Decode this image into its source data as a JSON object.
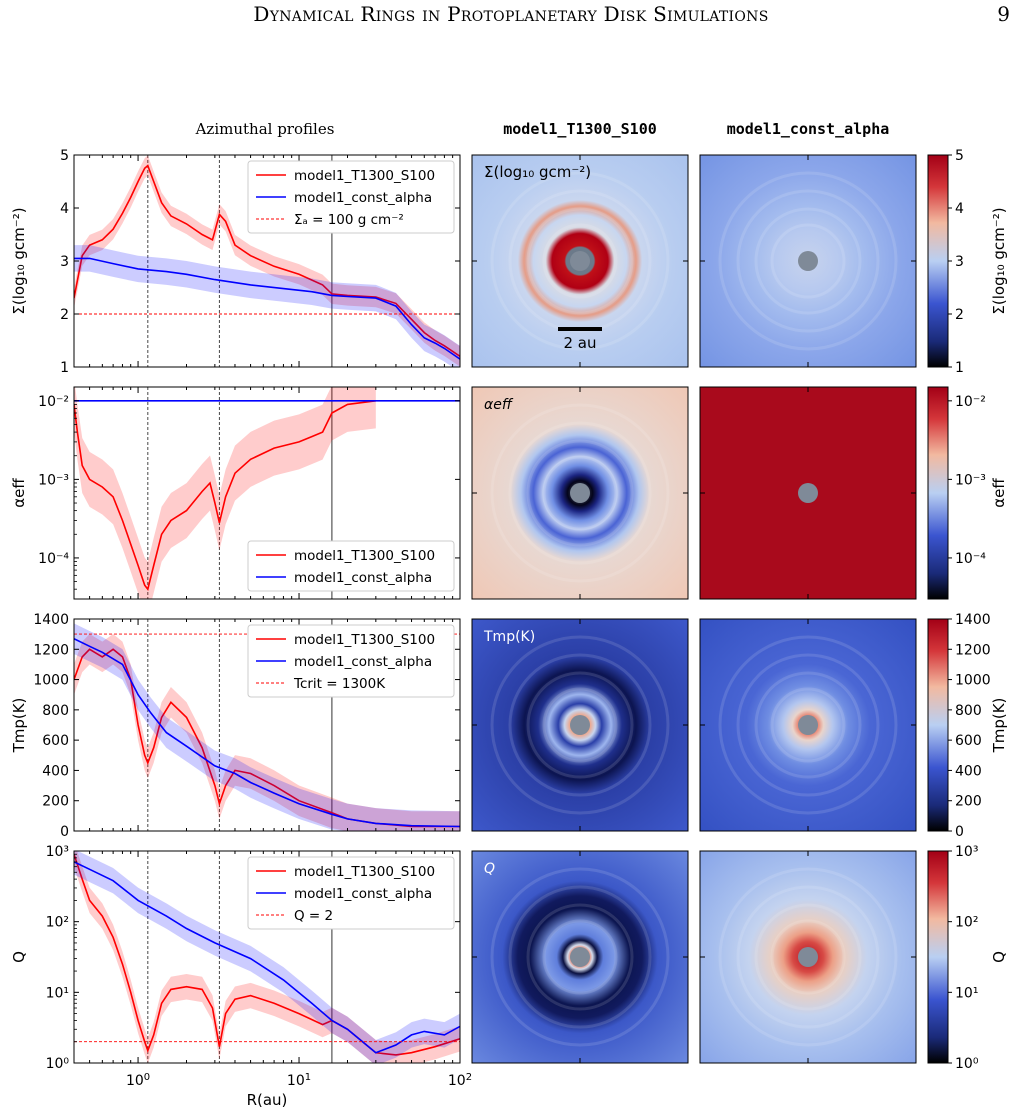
{
  "page": {
    "running_title": "Dynamical Rings in Protoplanetary Disk Simulations",
    "page_number": "9"
  },
  "figure": {
    "column_titles": [
      "Azimuthal profiles",
      "model1_T1300_S100",
      "model1_const_alpha"
    ],
    "x_axis": {
      "label": "R(au)",
      "scale": "log",
      "range": [
        0.4,
        100
      ],
      "tick_labels": [
        "10^0",
        "10^1",
        "10^2"
      ],
      "tick_values": [
        1,
        10,
        100
      ]
    },
    "vertical_lines": [
      {
        "x": 1.15,
        "style": "dashed"
      },
      {
        "x": 3.2,
        "style": "dashed"
      },
      {
        "x": 16,
        "style": "solid"
      }
    ],
    "scale_bar_label": "2 au",
    "colors": {
      "model1_T1300_S100": "#ff0000",
      "model1_const_alpha": "#0000ff",
      "threshold": "#ff0000",
      "star": "#7f8a98"
    },
    "rows": [
      {
        "id": "sigma",
        "ylabel": "Σ(log₁₀ gcm⁻²)",
        "map_label": "Σ(log₁₀ gcm⁻²)",
        "cbar_label": "Σ(log₁₀ gcm⁻²)",
        "yscale": "linear",
        "yrange": [
          1,
          5
        ],
        "ytick_labels": [
          "1",
          "2",
          "3",
          "4",
          "5"
        ],
        "cbar_tick_labels": [
          "1",
          "2",
          "3",
          "4",
          "5"
        ],
        "legend": [
          "model1_T1300_S100",
          "model1_const_alpha",
          "Σₐ = 100 g cm⁻²"
        ],
        "threshold": 2
      },
      {
        "id": "alpha",
        "ylabel": "αeff",
        "map_label": "αeff",
        "cbar_label": "αeff",
        "yscale": "log",
        "yrange": [
          3e-05,
          0.015
        ],
        "ytick_labels": [
          "10⁻⁴",
          "10⁻³",
          "10⁻²"
        ],
        "cbar_tick_labels": [
          "10⁻⁴",
          "10⁻³",
          "10⁻²"
        ],
        "legend": [
          "model1_T1300_S100",
          "model1_const_alpha"
        ],
        "threshold": null
      },
      {
        "id": "temp",
        "ylabel": "Tmp(K)",
        "map_label": "Tmp(K)",
        "cbar_label": "Tmp(K)",
        "yscale": "linear",
        "yrange": [
          0,
          1400
        ],
        "ytick_labels": [
          "0",
          "200",
          "400",
          "600",
          "800",
          "1000",
          "1200",
          "1400"
        ],
        "cbar_tick_labels": [
          "0",
          "200",
          "400",
          "600",
          "800",
          "1000",
          "1200",
          "1400"
        ],
        "legend": [
          "model1_T1300_S100",
          "model1_const_alpha",
          "Tcrit = 1300K"
        ],
        "threshold": 1300
      },
      {
        "id": "q",
        "ylabel": "Q",
        "map_label": "Q",
        "cbar_label": "Q",
        "yscale": "log",
        "yrange": [
          1,
          1000
        ],
        "ytick_labels": [
          "10⁰",
          "10¹",
          "10²",
          "10³"
        ],
        "cbar_tick_labels": [
          "10⁰",
          "10¹",
          "10²",
          "10³"
        ],
        "legend": [
          "model1_T1300_S100",
          "model1_const_alpha",
          "Q = 2"
        ],
        "threshold": 2
      }
    ]
  },
  "chart_data": [
    {
      "type": "line",
      "title": "",
      "xlabel": "R(au)",
      "ylabel": "Σ(log₁₀ gcm⁻²)",
      "xscale": "log",
      "xlim": [
        0.4,
        100
      ],
      "ylim": [
        1,
        5
      ],
      "legend_position": "top-right",
      "series": [
        {
          "name": "model1_T1300_S100",
          "x": [
            0.4,
            0.45,
            0.5,
            0.6,
            0.7,
            0.8,
            0.9,
            1.0,
            1.1,
            1.15,
            1.25,
            1.4,
            1.6,
            2.0,
            2.5,
            2.9,
            3.2,
            3.5,
            4.0,
            5.0,
            7.0,
            10,
            14,
            16,
            20,
            30,
            40,
            50,
            60,
            70,
            80,
            100
          ],
          "y": [
            2.3,
            3.1,
            3.3,
            3.4,
            3.6,
            3.9,
            4.2,
            4.5,
            4.75,
            4.8,
            4.5,
            4.1,
            3.85,
            3.7,
            3.5,
            3.4,
            3.88,
            3.75,
            3.3,
            3.1,
            2.9,
            2.75,
            2.55,
            2.38,
            2.35,
            2.32,
            2.2,
            1.9,
            1.65,
            1.5,
            1.4,
            1.2
          ]
        },
        {
          "name": "model1_const_alpha",
          "x": [
            0.4,
            0.5,
            0.7,
            1.0,
            1.5,
            2,
            3,
            5,
            8,
            12,
            16,
            20,
            30,
            40,
            50,
            60,
            70,
            80,
            100
          ],
          "y": [
            3.05,
            3.05,
            2.95,
            2.85,
            2.8,
            2.75,
            2.65,
            2.55,
            2.48,
            2.42,
            2.35,
            2.33,
            2.3,
            2.15,
            1.8,
            1.55,
            1.45,
            1.35,
            1.15
          ]
        },
        {
          "name": "Σₐ = 100 g cm⁻²",
          "x": [
            0.4,
            100
          ],
          "y": [
            2,
            2
          ]
        }
      ]
    },
    {
      "type": "line",
      "title": "",
      "xlabel": "R(au)",
      "ylabel": "αeff",
      "xscale": "log",
      "yscale": "log",
      "xlim": [
        0.4,
        100
      ],
      "ylim": [
        3e-05,
        0.015
      ],
      "legend_position": "bottom-right",
      "series": [
        {
          "name": "model1_T1300_S100",
          "x": [
            0.4,
            0.42,
            0.45,
            0.5,
            0.6,
            0.7,
            0.8,
            0.9,
            1.0,
            1.1,
            1.15,
            1.25,
            1.4,
            1.6,
            2.0,
            2.5,
            2.8,
            3.0,
            3.2,
            3.5,
            4.0,
            5.0,
            7.0,
            10,
            12,
            14,
            16,
            20,
            30
          ],
          "y": [
            0.009,
            0.004,
            0.0015,
            0.001,
            0.0008,
            0.0006,
            0.0003,
            0.00015,
            8e-05,
            4.5e-05,
            4e-05,
            8e-05,
            0.0002,
            0.0003,
            0.0004,
            0.0007,
            0.0009,
            0.0005,
            0.00028,
            0.0006,
            0.0012,
            0.0018,
            0.0025,
            0.003,
            0.0035,
            0.004,
            0.007,
            0.009,
            0.01
          ]
        },
        {
          "name": "model1_const_alpha",
          "x": [
            0.4,
            100
          ],
          "y": [
            0.01,
            0.01
          ]
        }
      ]
    },
    {
      "type": "line",
      "title": "",
      "xlabel": "R(au)",
      "ylabel": "Tmp(K)",
      "xscale": "log",
      "xlim": [
        0.4,
        100
      ],
      "ylim": [
        0,
        1400
      ],
      "legend_position": "top-right",
      "series": [
        {
          "name": "model1_T1300_S100",
          "x": [
            0.4,
            0.45,
            0.5,
            0.6,
            0.7,
            0.8,
            0.9,
            1.0,
            1.1,
            1.15,
            1.25,
            1.4,
            1.6,
            2.0,
            2.5,
            3.0,
            3.2,
            3.5,
            4.0,
            5.0,
            7.0,
            10,
            16,
            20,
            30,
            50,
            100
          ],
          "y": [
            1000,
            1150,
            1200,
            1150,
            1200,
            1150,
            1000,
            700,
            500,
            450,
            550,
            750,
            850,
            750,
            550,
            300,
            180,
            300,
            400,
            380,
            300,
            200,
            120,
            80,
            50,
            30,
            30
          ]
        },
        {
          "name": "model1_const_alpha",
          "x": [
            0.4,
            0.5,
            0.6,
            0.8,
            1.0,
            1.2,
            1.5,
            2.0,
            3.0,
            4.0,
            5.0,
            7.0,
            10,
            16,
            20,
            30,
            50,
            100
          ],
          "y": [
            1270,
            1220,
            1180,
            1100,
            900,
            780,
            650,
            560,
            430,
            380,
            320,
            250,
            180,
            110,
            80,
            50,
            35,
            30
          ]
        },
        {
          "name": "Tcrit = 1300K",
          "x": [
            0.4,
            100
          ],
          "y": [
            1300,
            1300
          ]
        }
      ]
    },
    {
      "type": "line",
      "title": "",
      "xlabel": "R(au)",
      "ylabel": "Q",
      "xscale": "log",
      "yscale": "log",
      "xlim": [
        0.4,
        100
      ],
      "ylim": [
        1,
        1000
      ],
      "legend_position": "top-right",
      "series": [
        {
          "name": "model1_T1300_S100",
          "x": [
            0.4,
            0.45,
            0.5,
            0.6,
            0.7,
            0.8,
            0.9,
            1.0,
            1.1,
            1.15,
            1.25,
            1.4,
            1.6,
            2.0,
            2.5,
            2.9,
            3.2,
            3.5,
            4.0,
            5.0,
            7.0,
            10,
            14,
            16,
            20,
            30,
            40,
            50,
            70,
            100
          ],
          "y": [
            900,
            400,
            200,
            120,
            60,
            25,
            10,
            4,
            2,
            1.5,
            2.5,
            7,
            11,
            12,
            11,
            6,
            1.7,
            5,
            8,
            9,
            7,
            5,
            3.5,
            4,
            3,
            1.4,
            1.3,
            1.4,
            1.7,
            2.2
          ]
        },
        {
          "name": "model1_const_alpha",
          "x": [
            0.4,
            0.5,
            0.7,
            1.0,
            1.5,
            2,
            3,
            5,
            8,
            12,
            16,
            20,
            30,
            40,
            50,
            60,
            80,
            100
          ],
          "y": [
            700,
            550,
            380,
            200,
            120,
            80,
            50,
            30,
            15,
            7,
            4,
            3,
            1.4,
            1.8,
            2.5,
            2.8,
            2.5,
            3.3
          ]
        },
        {
          "name": "Q = 2",
          "x": [
            0.4,
            100
          ],
          "y": [
            2,
            2
          ]
        }
      ]
    }
  ]
}
